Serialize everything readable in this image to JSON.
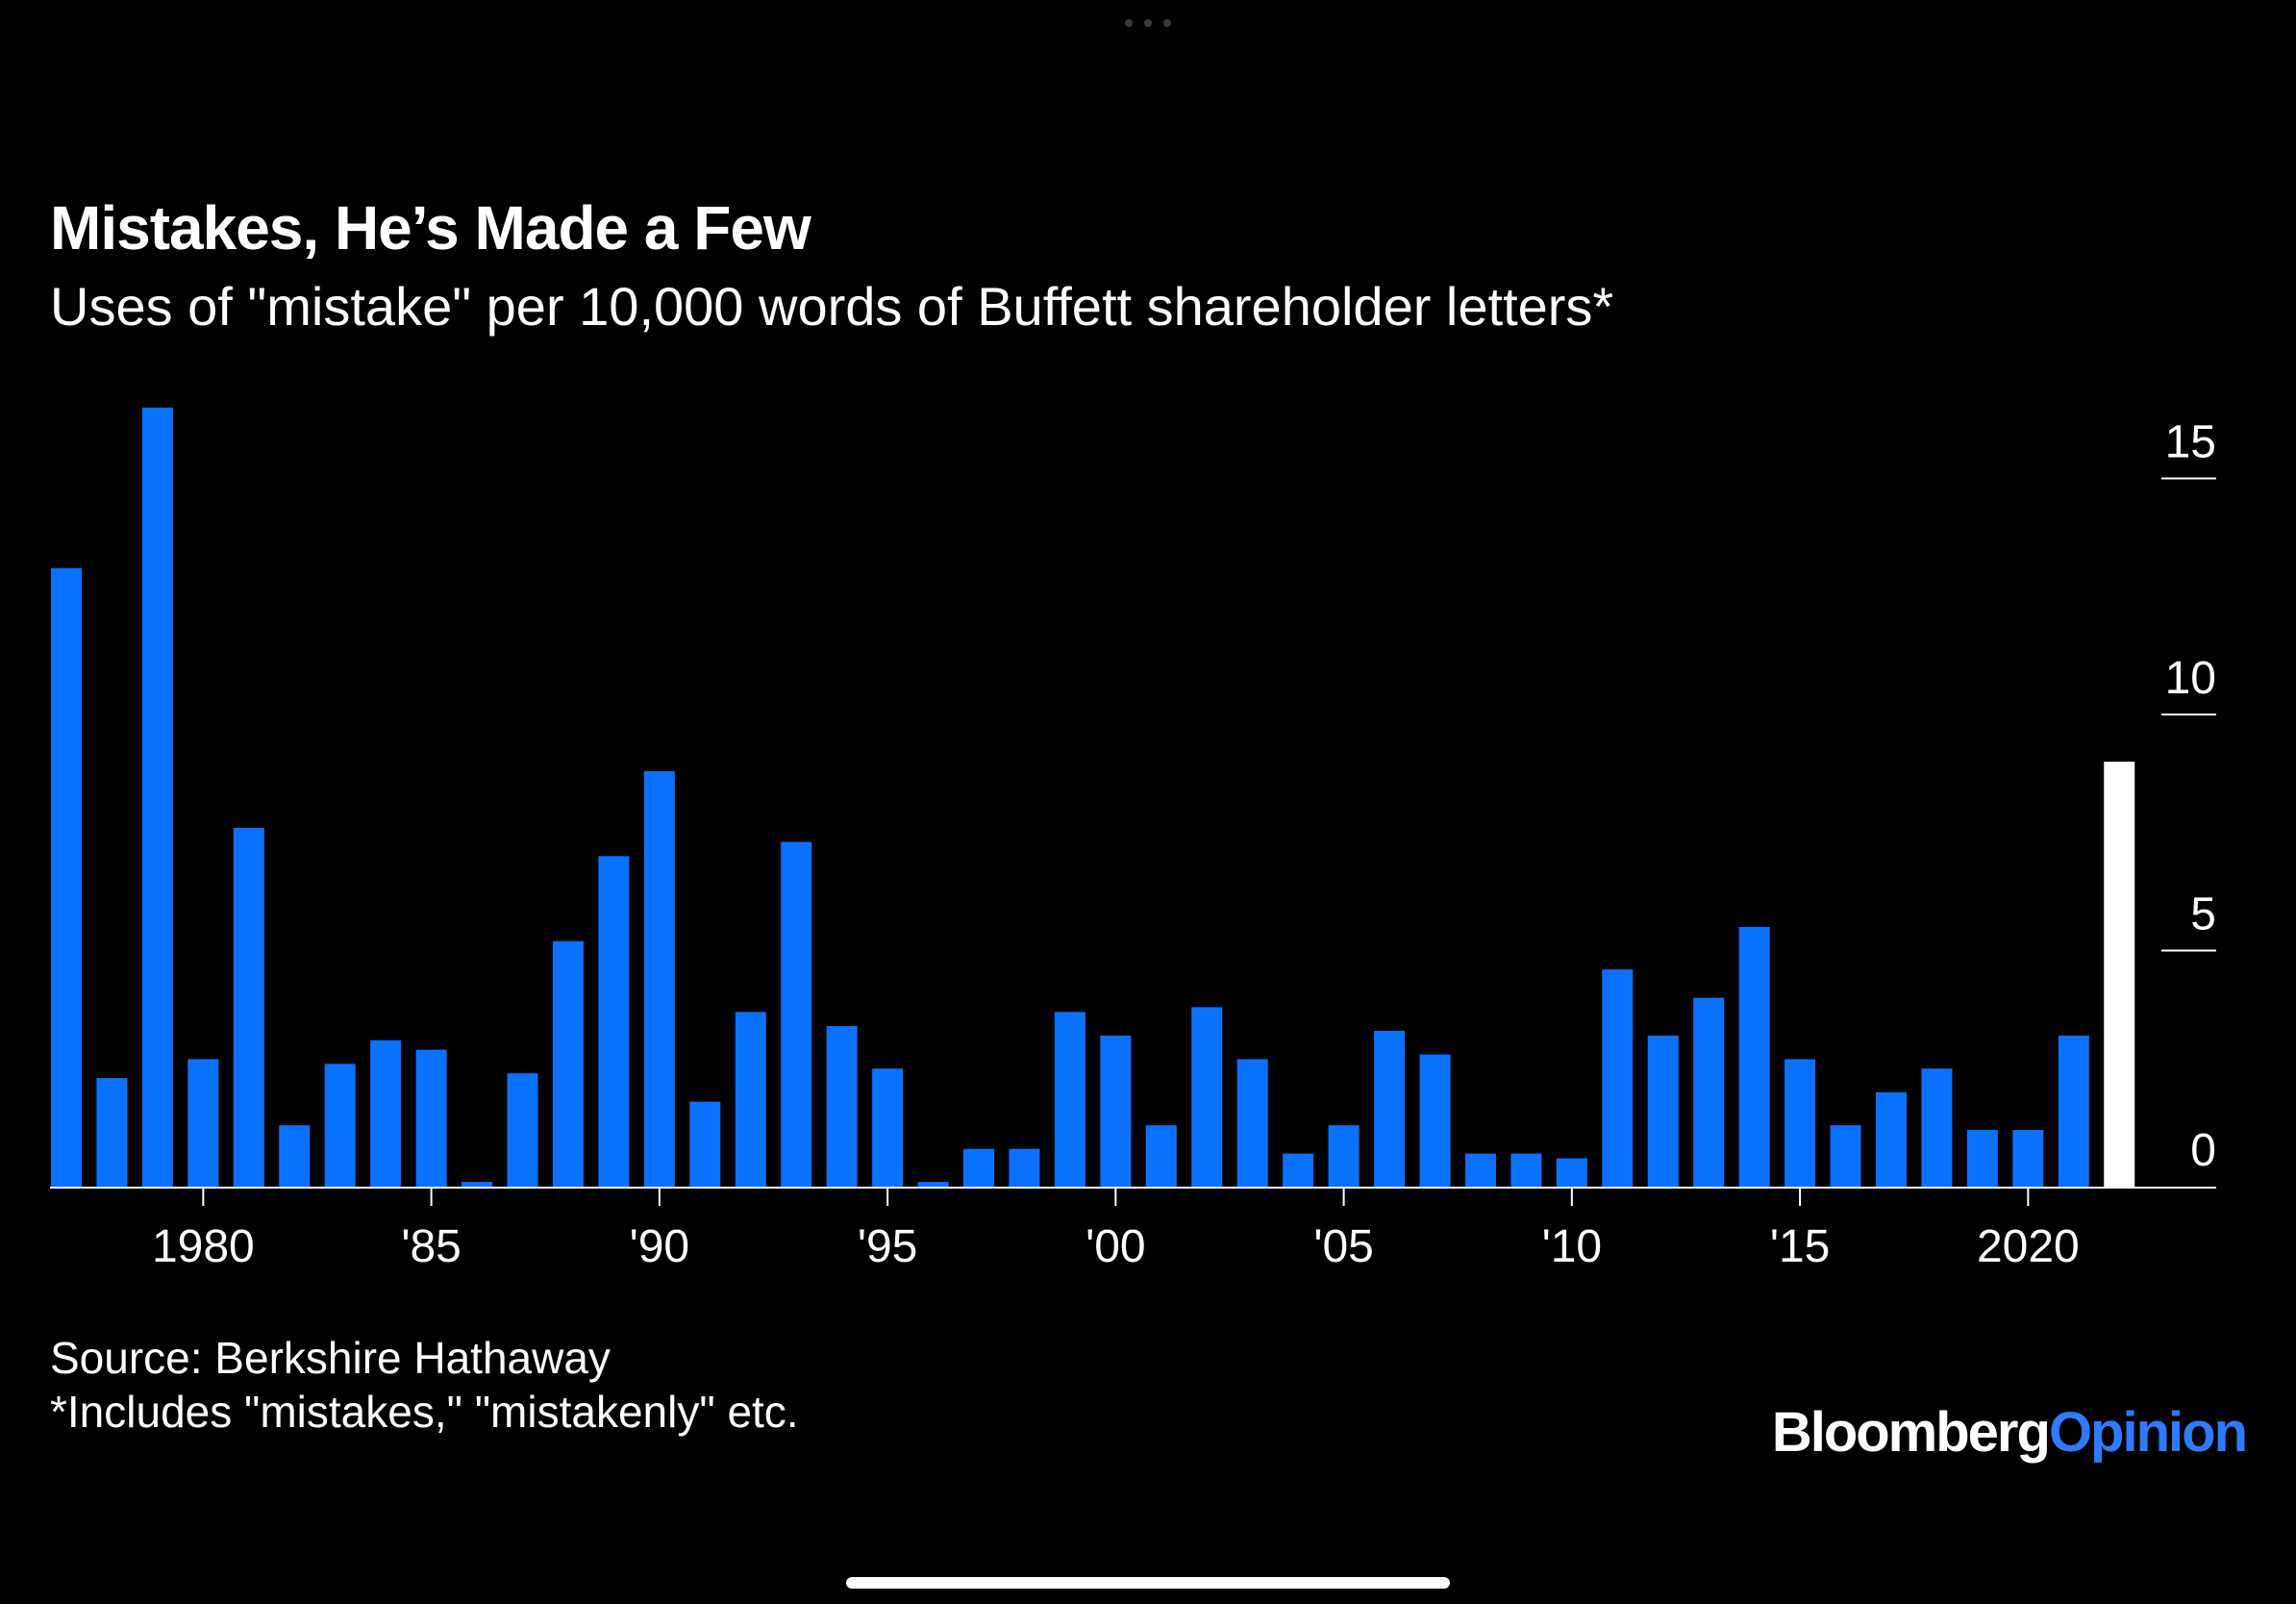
{
  "chart_data": {
    "type": "bar",
    "title": "Mistakes, He’s Made a Few",
    "subtitle": "Uses of \"mistake\" per 10,000 words of Buffett shareholder letters*",
    "xlabel": "",
    "ylabel": "",
    "x": [
      1977,
      1978,
      1979,
      1980,
      1981,
      1982,
      1983,
      1984,
      1985,
      1986,
      1987,
      1988,
      1989,
      1990,
      1991,
      1992,
      1993,
      1994,
      1995,
      1996,
      1997,
      1998,
      1999,
      2000,
      2001,
      2002,
      2003,
      2004,
      2005,
      2006,
      2007,
      2008,
      2009,
      2010,
      2011,
      2012,
      2013,
      2014,
      2015,
      2016,
      2017,
      2018,
      2019,
      2020,
      2021,
      2022
    ],
    "values": [
      13.1,
      2.3,
      16.5,
      2.7,
      7.6,
      1.3,
      2.6,
      3.1,
      2.9,
      0.1,
      2.4,
      5.2,
      7.0,
      8.8,
      1.8,
      3.7,
      7.3,
      3.4,
      2.5,
      0.1,
      0.8,
      0.8,
      3.7,
      3.2,
      1.3,
      3.8,
      2.7,
      0.7,
      1.3,
      3.3,
      2.8,
      0.7,
      0.7,
      0.6,
      4.6,
      3.2,
      4.0,
      5.5,
      2.7,
      1.3,
      2.0,
      2.5,
      1.2,
      1.2,
      3.2,
      9.0
    ],
    "highlight_index": 45,
    "ylim": [
      0,
      16.5
    ],
    "yticks": [
      0,
      5,
      10,
      15
    ],
    "y_axis_position": "right",
    "xticks": [
      {
        "x": 1980,
        "label": "1980"
      },
      {
        "x": 1985,
        "label": "'85"
      },
      {
        "x": 1990,
        "label": "'90"
      },
      {
        "x": 1995,
        "label": "'95"
      },
      {
        "x": 2000,
        "label": "'00"
      },
      {
        "x": 2005,
        "label": "'05"
      },
      {
        "x": 2010,
        "label": "'10"
      },
      {
        "x": 2015,
        "label": "'15"
      },
      {
        "x": 2020,
        "label": "2020"
      }
    ],
    "grid": false,
    "colors": {
      "bar": "#0a72ff",
      "highlight": "#ffffff",
      "axis": "#ffffff",
      "text": "#ffffff"
    }
  },
  "footer": {
    "source": "Source: Berkshire Hathaway",
    "note": "*Includes \"mistakes,\" \"mistakenly\" etc."
  },
  "logo": {
    "brand": "Bloomberg",
    "section": "Opinion"
  }
}
